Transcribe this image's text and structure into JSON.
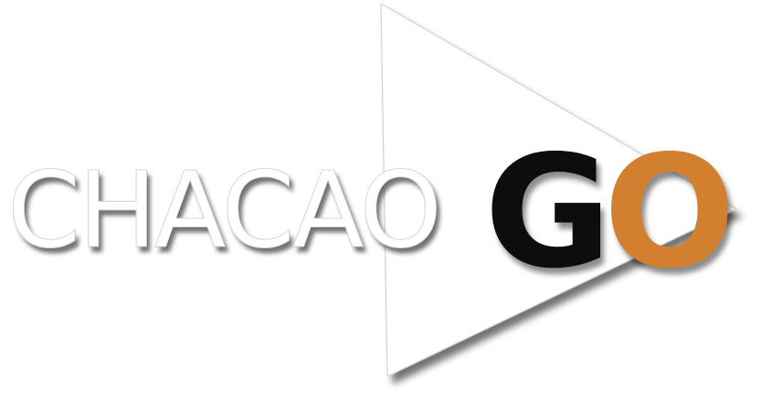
{
  "logo": {
    "part1": "CHACAO",
    "part2_letter1": "G",
    "part2_letter2": "O"
  },
  "colors": {
    "background": "#ffffff",
    "arrow_fill": "#ffffff",
    "arrow_shadow": "#666666",
    "chacao_text": "#ffffff",
    "go_g": "#0d0d0d",
    "go_o": "#d2802f"
  },
  "icons": {
    "arrow": "play-triangle-icon"
  }
}
